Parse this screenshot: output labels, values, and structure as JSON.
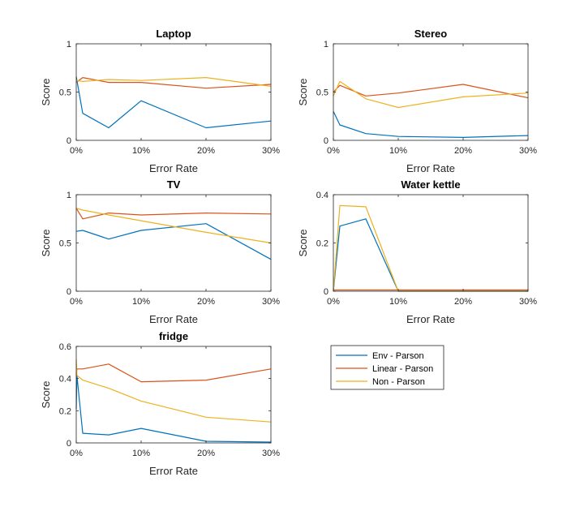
{
  "chart_data": [
    {
      "type": "line",
      "title": "Laptop",
      "xlabel": "Error Rate",
      "ylabel": "Score",
      "xlim": [
        0,
        30
      ],
      "ylim": [
        0,
        1
      ],
      "xticks": [
        0,
        10,
        20,
        30
      ],
      "xtick_labels": [
        "0%",
        "10%",
        "20%",
        "30%"
      ],
      "yticks": [
        0,
        0.5,
        1
      ],
      "ytick_labels": [
        "0",
        "0.5",
        "1"
      ],
      "x": [
        0,
        1,
        5,
        10,
        20,
        30
      ],
      "series": [
        {
          "name": "Env - Parson",
          "values": [
            0.66,
            0.28,
            0.13,
            0.41,
            0.13,
            0.2
          ]
        },
        {
          "name": "Linear - Parson",
          "values": [
            0.6,
            0.65,
            0.6,
            0.6,
            0.54,
            0.58
          ]
        },
        {
          "name": "Non - Parson",
          "values": [
            0.62,
            0.61,
            0.63,
            0.62,
            0.65,
            0.56
          ]
        }
      ]
    },
    {
      "type": "line",
      "title": "Stereo",
      "xlabel": "Error Rate",
      "ylabel": "Score",
      "xlim": [
        0,
        30
      ],
      "ylim": [
        0,
        1
      ],
      "xticks": [
        0,
        10,
        20,
        30
      ],
      "xtick_labels": [
        "0%",
        "10%",
        "20%",
        "30%"
      ],
      "yticks": [
        0,
        0.5,
        1
      ],
      "ytick_labels": [
        "0",
        "0.5",
        "1"
      ],
      "x": [
        0,
        1,
        5,
        10,
        20,
        30
      ],
      "series": [
        {
          "name": "Env - Parson",
          "values": [
            0.3,
            0.16,
            0.07,
            0.04,
            0.03,
            0.05
          ]
        },
        {
          "name": "Linear - Parson",
          "values": [
            0.5,
            0.57,
            0.46,
            0.49,
            0.58,
            0.44
          ]
        },
        {
          "name": "Non - Parson",
          "values": [
            0.46,
            0.61,
            0.43,
            0.34,
            0.45,
            0.49
          ]
        }
      ]
    },
    {
      "type": "line",
      "title": "TV",
      "xlabel": "Error Rate",
      "ylabel": "Score",
      "xlim": [
        0,
        30
      ],
      "ylim": [
        0,
        1
      ],
      "xticks": [
        0,
        10,
        20,
        30
      ],
      "xtick_labels": [
        "0%",
        "10%",
        "20%",
        "30%"
      ],
      "yticks": [
        0,
        0.5,
        1
      ],
      "ytick_labels": [
        "0",
        "0.5",
        "1"
      ],
      "x": [
        0,
        1,
        5,
        10,
        20,
        30
      ],
      "series": [
        {
          "name": "Env - Parson",
          "values": [
            0.62,
            0.63,
            0.54,
            0.63,
            0.7,
            0.33
          ]
        },
        {
          "name": "Linear - Parson",
          "values": [
            0.86,
            0.75,
            0.81,
            0.79,
            0.81,
            0.8
          ]
        },
        {
          "name": "Non - Parson",
          "values": [
            0.86,
            0.84,
            0.79,
            0.73,
            0.61,
            0.5
          ]
        }
      ]
    },
    {
      "type": "line",
      "title": "Water kettle",
      "xlabel": "Error Rate",
      "ylabel": "Score",
      "xlim": [
        0,
        30
      ],
      "ylim": [
        0,
        0.4
      ],
      "xticks": [
        0,
        10,
        20,
        30
      ],
      "xtick_labels": [
        "0%",
        "10%",
        "20%",
        "30%"
      ],
      "yticks": [
        0,
        0.2,
        0.4
      ],
      "ytick_labels": [
        "0",
        "0.2",
        "0.4"
      ],
      "x": [
        0,
        1,
        5,
        10,
        20,
        30
      ],
      "series": [
        {
          "name": "Env - Parson",
          "values": [
            0.0,
            0.27,
            0.3,
            0.0,
            0.0,
            0.0
          ]
        },
        {
          "name": "Linear - Parson",
          "values": [
            0.005,
            0.005,
            0.005,
            0.005,
            0.005,
            0.005
          ]
        },
        {
          "name": "Non - Parson",
          "values": [
            0.0,
            0.355,
            0.35,
            0.0,
            0.0,
            0.0
          ]
        }
      ]
    },
    {
      "type": "line",
      "title": "fridge",
      "xlabel": "Error Rate",
      "ylabel": "Score",
      "xlim": [
        0,
        30
      ],
      "ylim": [
        0,
        0.6
      ],
      "xticks": [
        0,
        10,
        20,
        30
      ],
      "xtick_labels": [
        "0%",
        "10%",
        "20%",
        "30%"
      ],
      "yticks": [
        0,
        0.2,
        0.4,
        0.6
      ],
      "ytick_labels": [
        "0",
        "0.2",
        "0.4",
        "0.6"
      ],
      "x": [
        0,
        0.1,
        1,
        5,
        10,
        20,
        30
      ],
      "series": [
        {
          "name": "Env - Parson",
          "values": [
            0.21,
            0.42,
            0.06,
            0.05,
            0.09,
            0.01,
            0.005
          ]
        },
        {
          "name": "Linear - Parson",
          "values": [
            0.42,
            0.46,
            0.46,
            0.49,
            0.38,
            0.39,
            0.46
          ]
        },
        {
          "name": "Non - Parson",
          "values": [
            0.52,
            0.42,
            0.39,
            0.34,
            0.26,
            0.16,
            0.13
          ]
        }
      ]
    }
  ],
  "legend": {
    "placement": "lower-right (empty sixth panel)",
    "entries": [
      {
        "label": "Env - Parson",
        "color": "#0072BD"
      },
      {
        "label": "Linear - Parson",
        "color": "#D95319"
      },
      {
        "label": "Non - Parson",
        "color": "#EDB120"
      }
    ]
  },
  "colors": {
    "series": [
      "#0072BD",
      "#D95319",
      "#EDB120"
    ],
    "axis": "#262626"
  }
}
